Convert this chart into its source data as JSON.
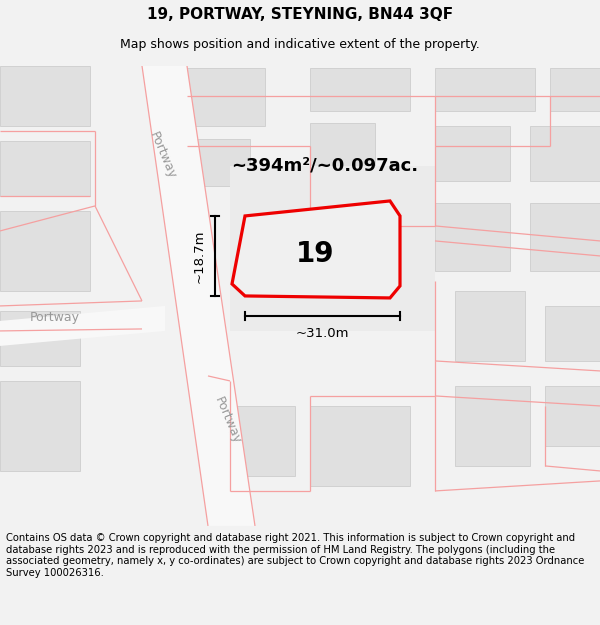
{
  "title": "19, PORTWAY, STEYNING, BN44 3QF",
  "subtitle": "Map shows position and indicative extent of the property.",
  "footer": "Contains OS data © Crown copyright and database right 2021. This information is subject to Crown copyright and database rights 2023 and is reproduced with the permission of HM Land Registry. The polygons (including the associated geometry, namely x, y co-ordinates) are subject to Crown copyright and database rights 2023 Ordnance Survey 100026316.",
  "area_label": "~394m²/~0.097ac.",
  "number_label": "19",
  "width_label": "~31.0m",
  "height_label": "~18.7m",
  "road_label_top": "Portway",
  "road_label_bottom": "Portway",
  "road_label_left": "Portway",
  "bg_color": "#f2f2f2",
  "map_bg": "#ffffff",
  "block_color": "#e0e0e0",
  "road_fill": "#f8f8f8",
  "red_line_color": "#ee0000",
  "pink_line_color": "#f5a0a0",
  "title_fontsize": 11,
  "subtitle_fontsize": 9,
  "footer_fontsize": 7.2,
  "label_fontsize": 14,
  "number_fontsize": 22,
  "dim_fontsize": 9.5
}
